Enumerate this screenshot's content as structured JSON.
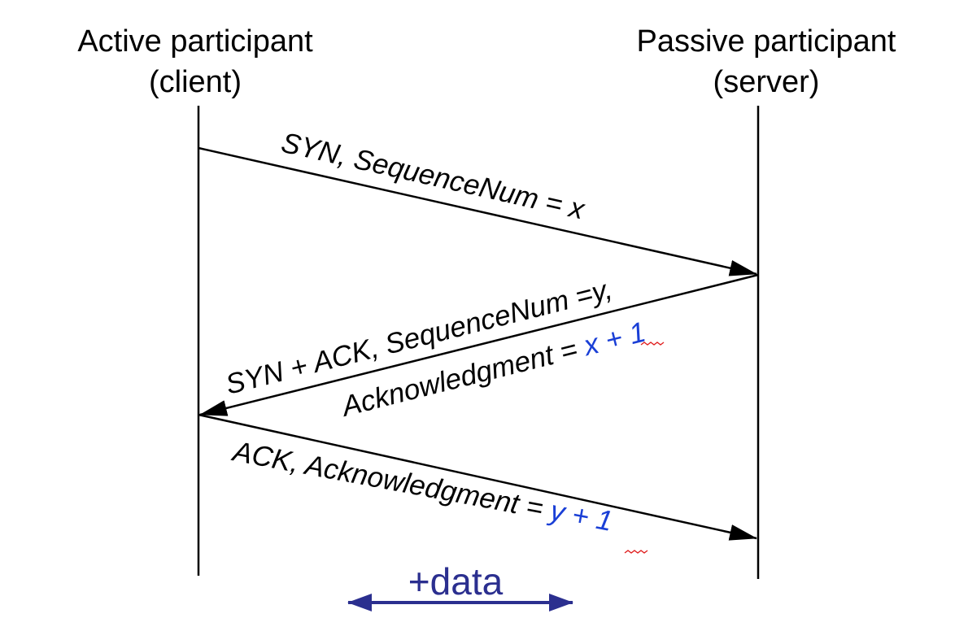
{
  "participants": {
    "client": {
      "line1": "Active participant",
      "line2": "(client)"
    },
    "server": {
      "line1": "Passive participant",
      "line2": "(server)"
    }
  },
  "messages": {
    "syn": {
      "label": "SYN, SequenceNum = x"
    },
    "synack": {
      "line1": "SYN + ACK, SequenceNum =y,",
      "line2_prefix": "Acknowledgment = ",
      "line2_var": "x",
      "line2_suffix": " + 1"
    },
    "ack": {
      "label_prefix": "ACK, Acknowledgment = ",
      "label_var": "y",
      "label_suffix": " + 1"
    }
  },
  "data_arrow": {
    "label": "+data"
  },
  "colors": {
    "line": "#000000",
    "accent_blue": "#1a3fd6",
    "data_arrow": "#2b2f8f",
    "spellcheck": "#e02020"
  }
}
